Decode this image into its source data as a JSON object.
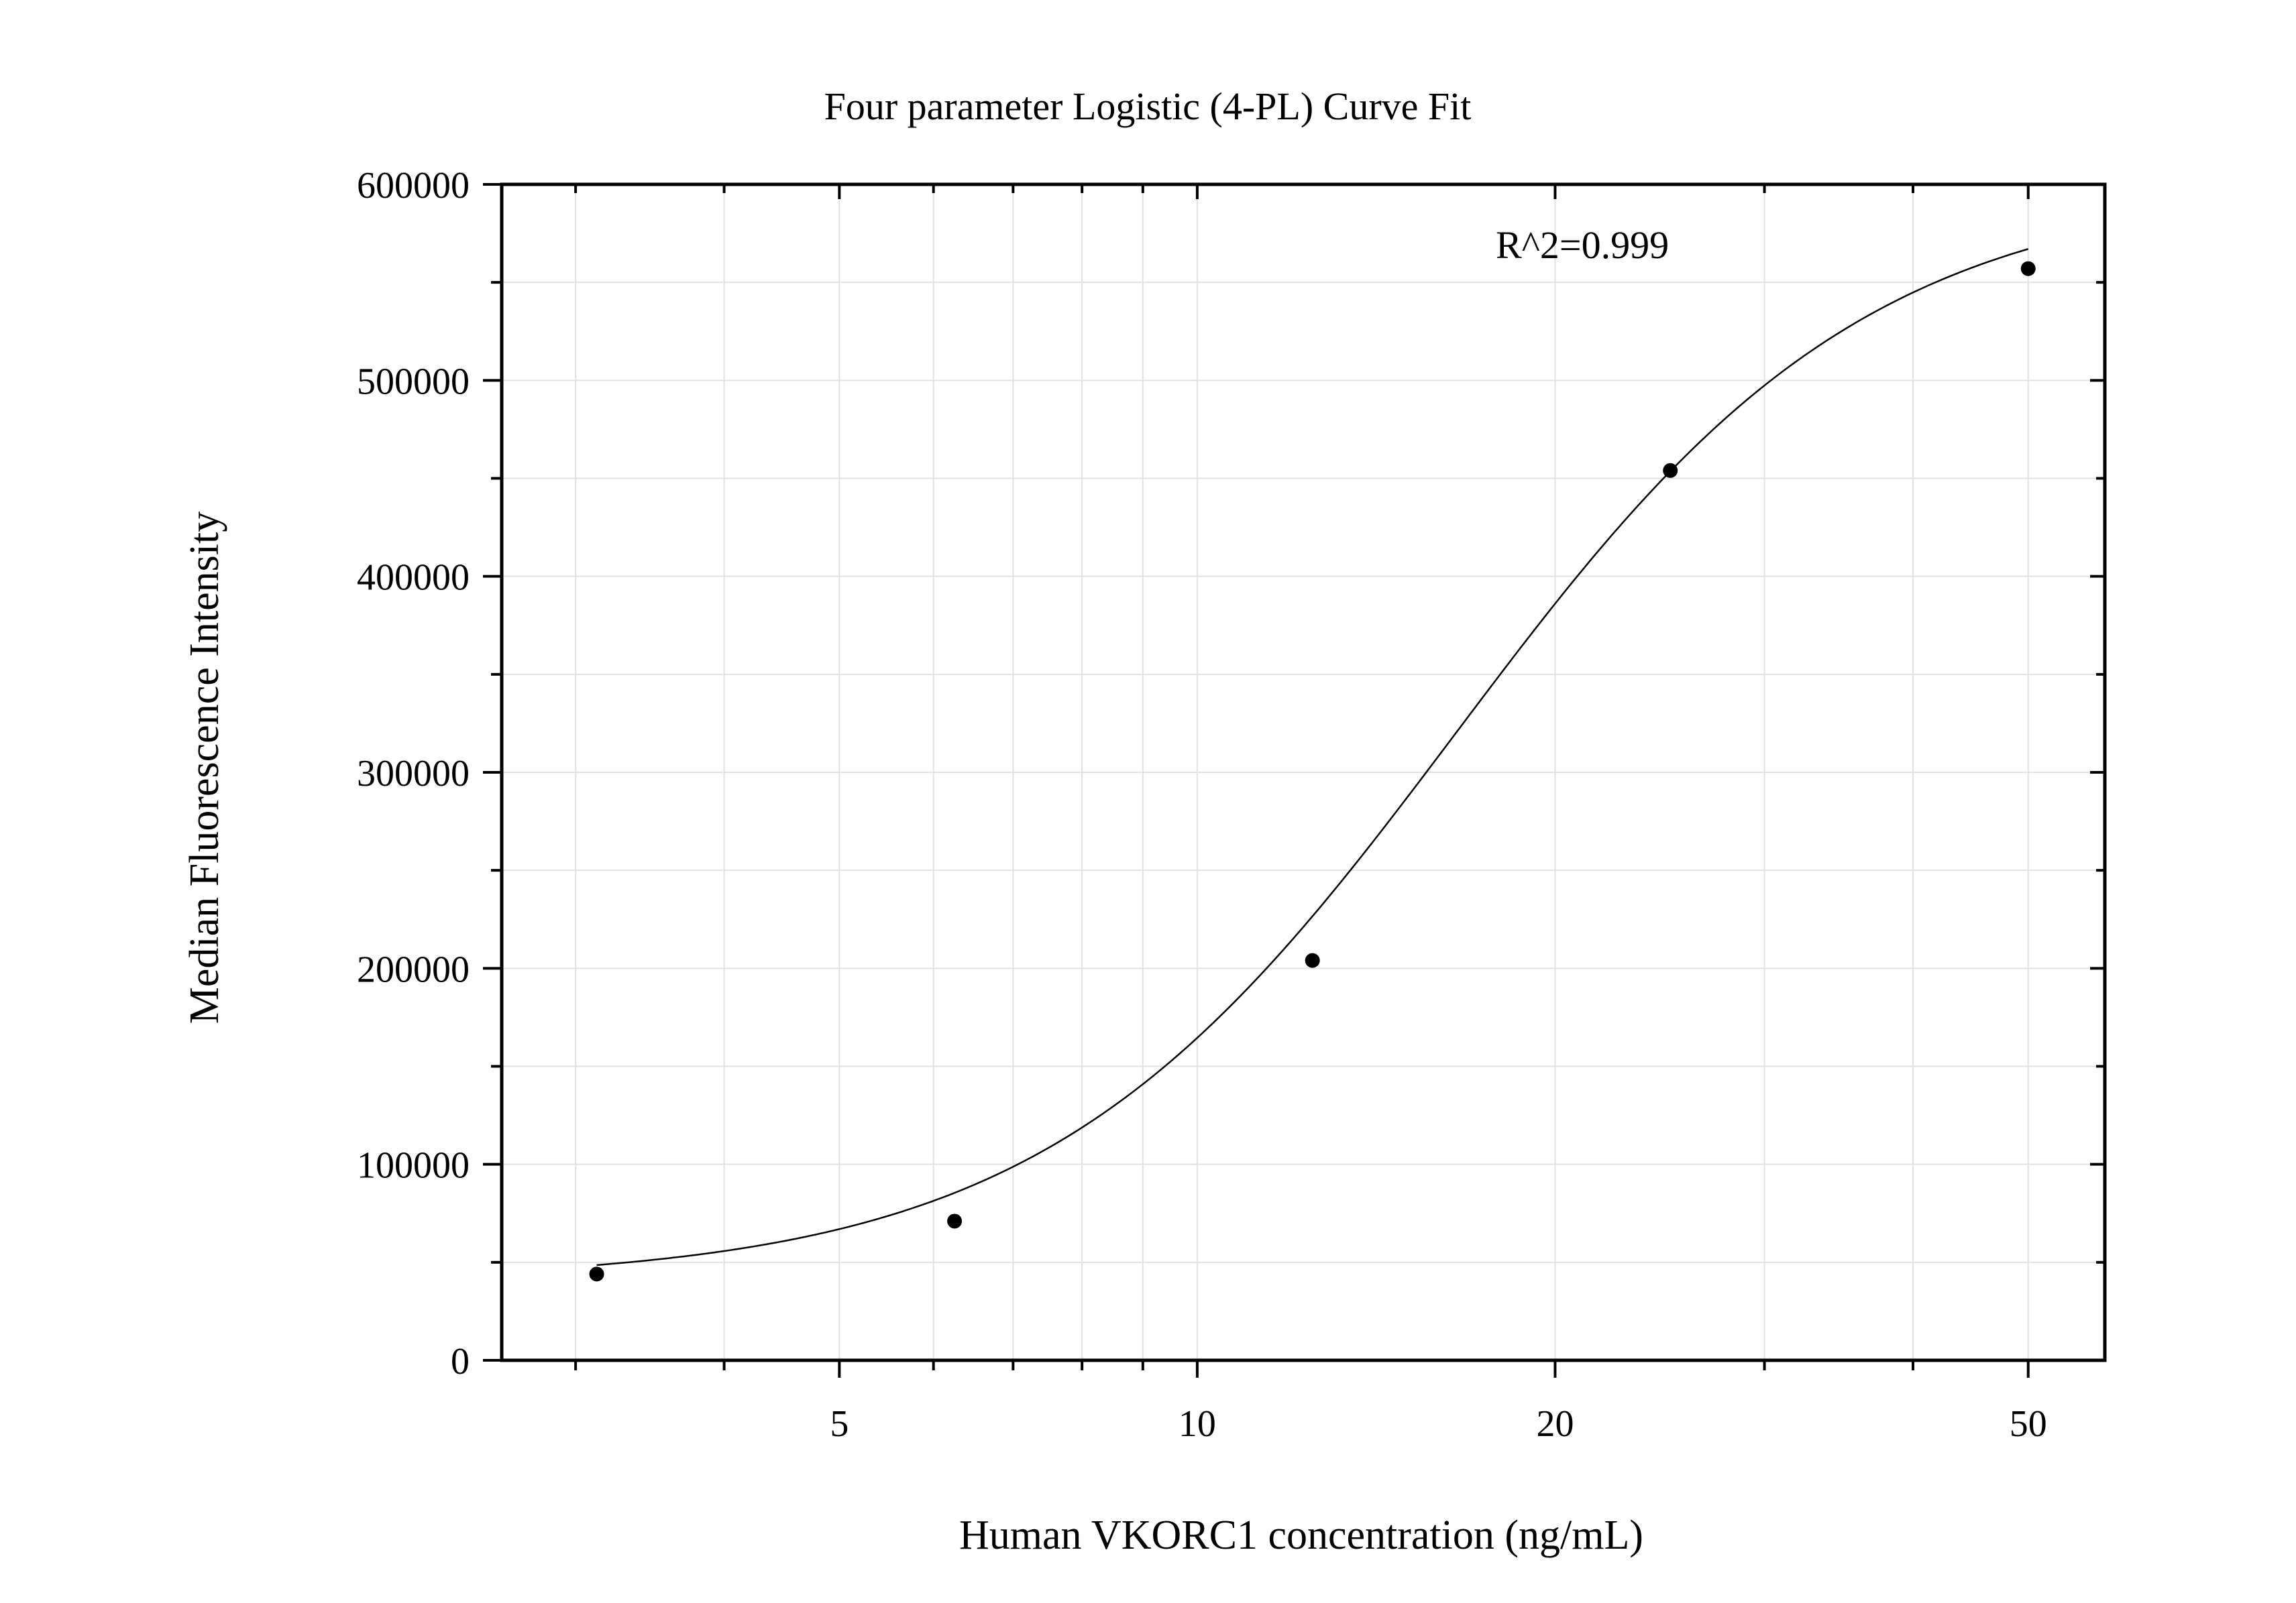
{
  "chart_data": {
    "type": "scatter",
    "title": "Four parameter Logistic (4-PL) Curve Fit",
    "xlabel": "Human VKORC1 concentration (ng/mL)",
    "ylabel": "Median Fluorescence Intensity",
    "x_scale": "log",
    "xlim": [
      2.6,
      58
    ],
    "ylim": [
      0,
      600000
    ],
    "x_ticks": [
      5,
      10,
      20,
      50
    ],
    "x_tick_labels": [
      "5",
      "10",
      "20",
      "50"
    ],
    "x_minor_ticks": [
      3,
      4,
      6,
      7,
      8,
      9,
      30,
      40
    ],
    "y_ticks": [
      0,
      100000,
      200000,
      300000,
      400000,
      500000,
      600000
    ],
    "y_tick_labels": [
      "0",
      "100000",
      "200000",
      "300000",
      "400000",
      "500000",
      "600000"
    ],
    "y_minor_ticks": [
      50000,
      150000,
      250000,
      350000,
      450000,
      550000
    ],
    "grid": true,
    "annotation": "R^2=0.999",
    "series": [
      {
        "x": [
          3.125,
          6.25,
          12.5,
          25,
          50
        ],
        "y": [
          44000,
          71000,
          204000,
          454000,
          557000
        ]
      }
    ],
    "fit": {
      "model": "4PL",
      "A": 40000,
      "D": 600000,
      "C": 16.5,
      "B": 2.5
    }
  }
}
